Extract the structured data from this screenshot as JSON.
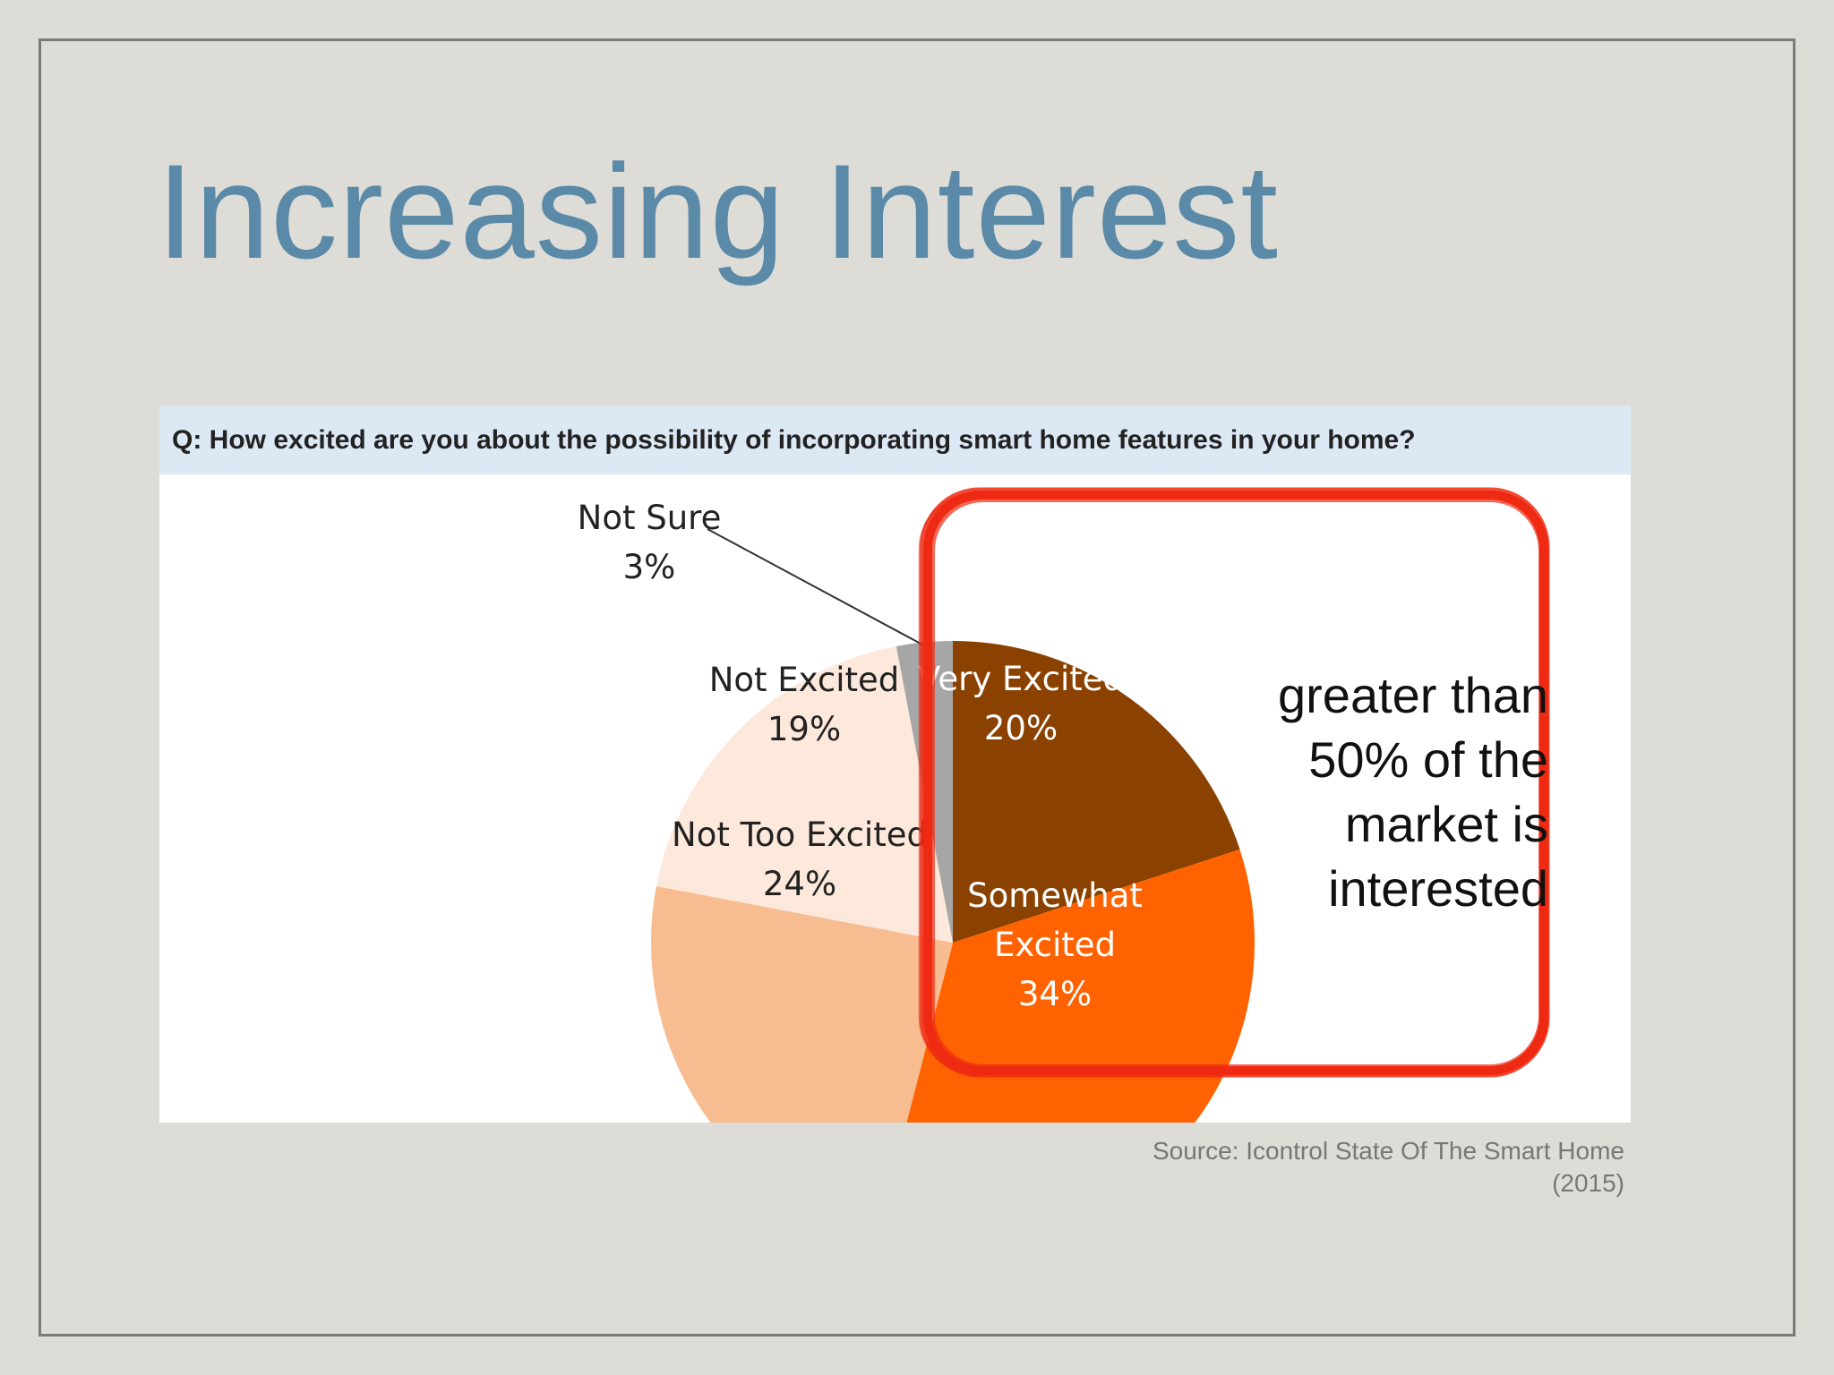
{
  "slide": {
    "title": "Increasing Interest",
    "source_line1": "Source: Icontrol State Of The Smart Home",
    "source_line2": "(2015)"
  },
  "chart_data": {
    "type": "pie",
    "title": "Q: How excited are you about the possibility of incorporating smart home features in your home?",
    "slices": [
      {
        "label": "Very Excited",
        "value": 20,
        "value_label": "20%",
        "color": "#8b4100"
      },
      {
        "label": "Somewhat Excited",
        "label_lines": [
          "Somewhat",
          "Excited"
        ],
        "value": 34,
        "value_label": "34%",
        "color": "#ff6200"
      },
      {
        "label": "Not Too Excited",
        "value": 24,
        "value_label": "24%",
        "color": "#f7bd91"
      },
      {
        "label": "Not Excited",
        "value": 19,
        "value_label": "19%",
        "color": "#fde9dc"
      },
      {
        "label": "Not Sure",
        "value": 3,
        "value_label": "3%",
        "color": "#a6a6a6"
      }
    ],
    "annotation": {
      "lines": [
        "greater than",
        "50% of the",
        "market is",
        "interested"
      ],
      "highlight_color": "#ee2a12"
    }
  }
}
